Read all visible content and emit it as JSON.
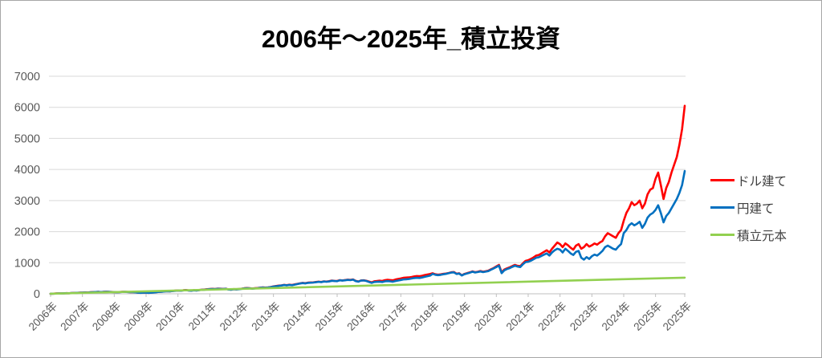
{
  "chart_data": {
    "type": "line",
    "title": "2006年～2025年_積立投資",
    "xlabel": "",
    "ylabel": "",
    "xlim": [
      2006.0,
      2025.9167
    ],
    "ylim": [
      0,
      7000
    ],
    "y_ticks": [
      0,
      1000,
      2000,
      3000,
      4000,
      5000,
      6000,
      7000
    ],
    "x_tick_positions": [
      2006,
      2007,
      2008,
      2009,
      2010,
      2011,
      2012,
      2013,
      2014,
      2015,
      2016,
      2017,
      2018,
      2019,
      2020,
      2021,
      2022,
      2023,
      2024,
      2025,
      2025.9167
    ],
    "x_tick_labels": [
      "2006年",
      "2007年",
      "2008年",
      "2009年",
      "2010年",
      "2011年",
      "2012年",
      "2013年",
      "2014年",
      "2015年",
      "2016年",
      "2017年",
      "2018年",
      "2019年",
      "2020年",
      "2021年",
      "2022年",
      "2023年",
      "2024年",
      "2025年",
      "2025年"
    ],
    "grid": "horizontal",
    "legend_position": "right",
    "colors": {
      "gridline": "#d9d9d9",
      "axis_line": "#bfbfbf",
      "tick_label": "#595959",
      "title": "#000000",
      "legend_text": "#404040",
      "background": "#ffffff",
      "frame_border": "#a6a6a6"
    },
    "series": [
      {
        "name": "ドル建て",
        "color": "#ff0000",
        "x_start": 2006.0,
        "x_step_months": 1,
        "values": [
          3,
          6,
          10,
          14,
          12,
          16,
          20,
          18,
          23,
          28,
          32,
          36,
          40,
          43,
          41,
          48,
          53,
          58,
          62,
          55,
          61,
          68,
          63,
          60,
          55,
          51,
          56,
          61,
          64,
          59,
          53,
          57,
          48,
          37,
          34,
          40,
          37,
          32,
          38,
          47,
          56,
          63,
          71,
          78,
          85,
          81,
          90,
          100,
          107,
          102,
          113,
          121,
          109,
          103,
          114,
          108,
          121,
          131,
          136,
          148,
          155,
          160,
          156,
          165,
          162,
          157,
          164,
          143,
          134,
          151,
          145,
          153,
          165,
          178,
          187,
          182,
          170,
          180,
          187,
          196,
          205,
          199,
          207,
          220,
          238,
          250,
          263,
          271,
          288,
          276,
          293,
          283,
          301,
          318,
          336,
          350,
          340,
          358,
          363,
          368,
          379,
          391,
          380,
          400,
          393,
          405,
          425,
          417,
          412,
          440,
          430,
          442,
          454,
          446,
          462,
          415,
          396,
          430,
          435,
          419,
          392,
          368,
          402,
          410,
          420,
          413,
          440,
          449,
          442,
          434,
          460,
          479,
          494,
          514,
          521,
          528,
          541,
          558,
          570,
          566,
          582,
          602,
          620,
          636,
          660,
          628,
          615,
          625,
          641,
          652,
          670,
          692,
          700,
          646,
          660,
          595,
          640,
          665,
          690,
          720,
          695,
          710,
          730,
          710,
          725,
          745,
          790,
          830,
          880,
          930,
          690,
          780,
          820,
          850,
          890,
          930,
          900,
          890,
          980,
          1060,
          1080,
          1120,
          1170,
          1230,
          1250,
          1300,
          1350,
          1400,
          1330,
          1450,
          1550,
          1650,
          1600,
          1500,
          1620,
          1560,
          1480,
          1420,
          1550,
          1600,
          1450,
          1500,
          1600,
          1520,
          1560,
          1620,
          1580,
          1650,
          1700,
          1850,
          1950,
          1900,
          1850,
          1800,
          1950,
          2050,
          2350,
          2600,
          2750,
          2950,
          2850,
          2900,
          3000,
          2750,
          2900,
          3200,
          3350,
          3400,
          3700,
          3900,
          3500,
          3050,
          3400,
          3600,
          3900,
          4150,
          4400,
          4800,
          5300,
          6050
        ]
      },
      {
        "name": "円建て",
        "color": "#0070c0",
        "x_start": 2006.0,
        "x_step_months": 1,
        "values": [
          3,
          6,
          9,
          13,
          11,
          15,
          19,
          17,
          22,
          27,
          31,
          34,
          38,
          42,
          40,
          46,
          51,
          56,
          60,
          53,
          59,
          65,
          61,
          57,
          53,
          49,
          54,
          59,
          62,
          57,
          51,
          55,
          46,
          35,
          32,
          38,
          35,
          30,
          36,
          45,
          54,
          61,
          68,
          75,
          82,
          78,
          87,
          96,
          103,
          98,
          109,
          117,
          105,
          99,
          110,
          104,
          117,
          127,
          131,
          143,
          150,
          155,
          151,
          160,
          157,
          152,
          159,
          138,
          129,
          146,
          140,
          148,
          160,
          172,
          181,
          176,
          164,
          174,
          181,
          190,
          199,
          193,
          201,
          214,
          232,
          244,
          257,
          265,
          282,
          270,
          287,
          277,
          295,
          312,
          330,
          344,
          334,
          352,
          357,
          362,
          373,
          385,
          374,
          394,
          387,
          399,
          419,
          411,
          406,
          433,
          423,
          435,
          447,
          439,
          455,
          408,
          389,
          423,
          428,
          412,
          380,
          350,
          380,
          385,
          390,
          380,
          400,
          408,
          400,
          390,
          410,
          425,
          445,
          462,
          468,
          475,
          490,
          505,
          515,
          510,
          525,
          545,
          565,
          585,
          640,
          612,
          600,
          610,
          628,
          640,
          660,
          682,
          690,
          638,
          652,
          588,
          630,
          655,
          680,
          710,
          685,
          700,
          718,
          698,
          712,
          730,
          775,
          815,
          860,
          905,
          665,
          755,
          795,
          825,
          865,
          905,
          875,
          860,
          950,
          1020,
          1030,
          1065,
          1110,
          1160,
          1175,
          1220,
          1260,
          1300,
          1230,
          1330,
          1400,
          1450,
          1420,
          1330,
          1450,
          1380,
          1300,
          1250,
          1350,
          1380,
          1160,
          1100,
          1180,
          1120,
          1210,
          1260,
          1230,
          1300,
          1380,
          1500,
          1550,
          1500,
          1450,
          1420,
          1520,
          1600,
          1950,
          2050,
          2200,
          2270,
          2200,
          2250,
          2320,
          2120,
          2250,
          2450,
          2550,
          2600,
          2700,
          2850,
          2600,
          2300,
          2500,
          2600,
          2750,
          2900,
          3050,
          3250,
          3500,
          3950
        ]
      },
      {
        "name": "積立元本",
        "color": "#92d050",
        "x_start": 2006.0,
        "x_step_months": 239,
        "values": [
          2,
          519
        ]
      }
    ]
  }
}
